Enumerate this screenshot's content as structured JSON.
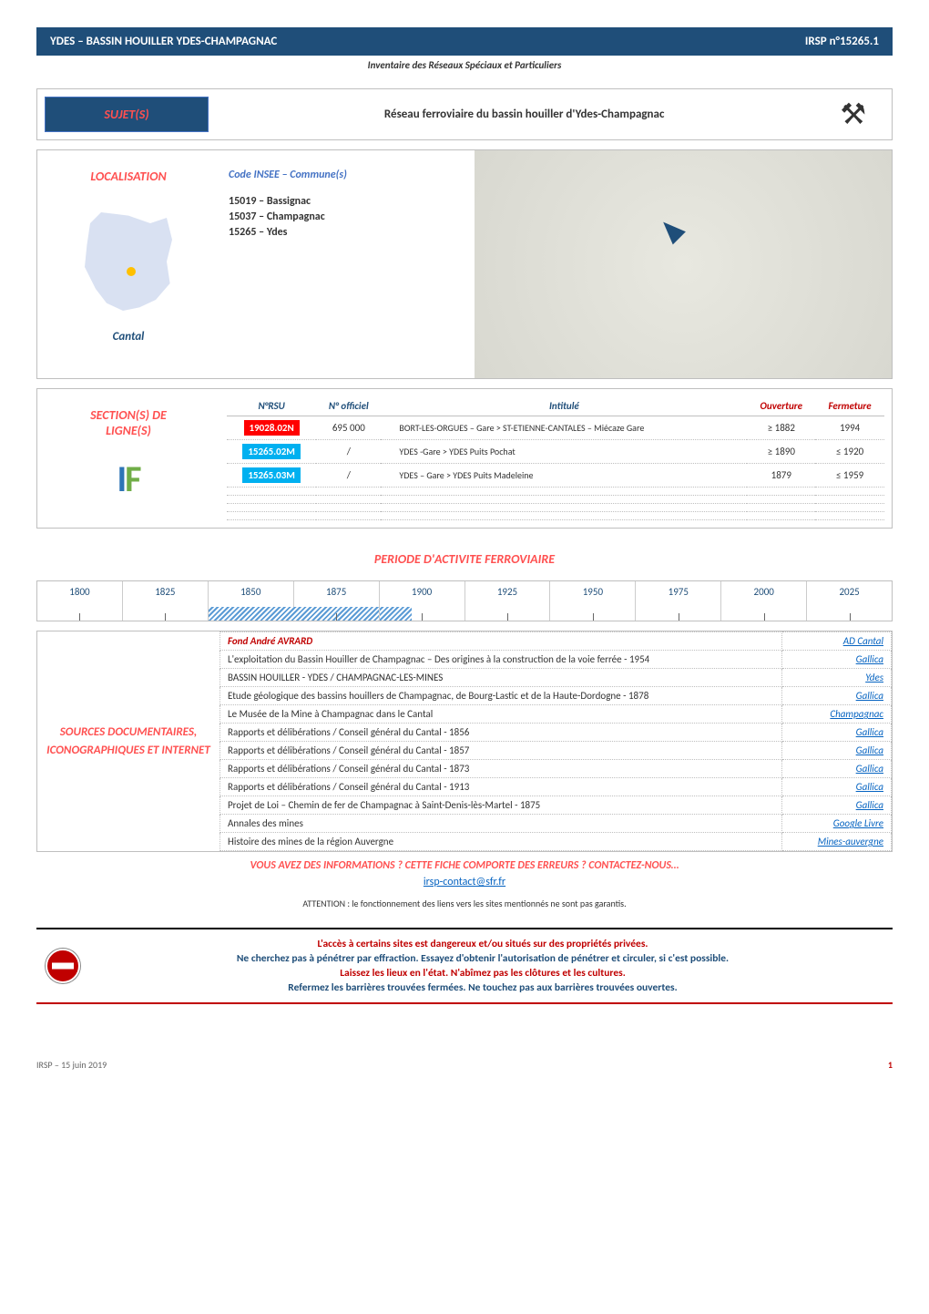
{
  "header": {
    "title_left": "YDES – BASSIN HOUILLER YDES-CHAMPAGNAC",
    "title_right": "IRSP n°15265.1",
    "subtitle": "Inventaire des Réseaux Spéciaux et Particuliers"
  },
  "sujet": {
    "box_label": "SUJET(S)",
    "text": "Réseau ferroviaire du bassin houiller d'Ydes-Champagnac",
    "icon": "⚒"
  },
  "localisation": {
    "box_label": "LOCALISATION",
    "insee_label": "Code INSEE – Commune(s)",
    "communes": [
      "15019 – Bassignac",
      "15037 – Champagnac",
      "15265 – Ydes"
    ],
    "region_label": "Cantal"
  },
  "sections": {
    "box_label": "SECTION(S) DE LIGNE(S)",
    "columns": {
      "rsu": "N°RSU",
      "officiel": "N° officiel",
      "intitule": "Intitulé",
      "ouverture": "Ouverture",
      "fermeture": "Fermeture"
    },
    "rows": [
      {
        "rsu": "19028.02N",
        "rsu_color": "#ff0000",
        "officiel": "695 000",
        "intitule": "BORT-LES-ORGUES – Gare > ST-ETIENNE-CANTALES – Miécaze Gare",
        "ouverture": "≥ 1882",
        "fermeture": "1994"
      },
      {
        "rsu": "15265.02M",
        "rsu_color": "#00b0f0",
        "officiel": "/",
        "intitule": "YDES -Gare > YDES Puits Pochat",
        "ouverture": "≥ 1890",
        "fermeture": "≤ 1920"
      },
      {
        "rsu": "15265.03M",
        "rsu_color": "#00b0f0",
        "officiel": "/",
        "intitule": "YDES – Gare > YDES Puits Madeleine",
        "ouverture": "1879",
        "fermeture": "≤ 1959"
      }
    ]
  },
  "periode": {
    "title": "PERIODE D'ACTIVITE FERROVIAIRE",
    "years": [
      "1800",
      "1825",
      "1850",
      "1875",
      "1900",
      "1925",
      "1950",
      "1975",
      "2000",
      "2025"
    ],
    "active_start_pct": 20,
    "active_width_pct": 24
  },
  "sources": {
    "box_label": "SOURCES DOCUMENTAIRES, ICONOGRAPHIQUES ET INTERNET",
    "fond_label": "Fond André AVRARD",
    "fond_link": "AD Cantal",
    "rows": [
      {
        "text": "L'exploitation du Bassin Houiller de Champagnac – Des origines à la construction de la voie ferrée - 1954",
        "link": "Gallica"
      },
      {
        "text": "BASSIN HOUILLER - YDES / CHAMPAGNAC-LES-MINES",
        "link": "Ydes"
      },
      {
        "text": "Etude géologique des bassins houillers de Champagnac, de Bourg-Lastic et de la Haute-Dordogne - 1878",
        "link": "Gallica"
      },
      {
        "text": "Le Musée de la Mine à Champagnac dans le Cantal",
        "link": "Champagnac"
      },
      {
        "text": "Rapports et délibérations / Conseil général du Cantal - 1856",
        "link": "Gallica"
      },
      {
        "text": "Rapports et délibérations / Conseil général du Cantal - 1857",
        "link": "Gallica"
      },
      {
        "text": "Rapports et délibérations / Conseil général du Cantal - 1873",
        "link": "Gallica"
      },
      {
        "text": "Rapports et délibérations / Conseil général du Cantal - 1913",
        "link": "Gallica"
      },
      {
        "text": "Projet de Loi – Chemin de fer de Champagnac à Saint-Denis-lès-Martel - 1875",
        "link": "Gallica"
      },
      {
        "text": "Annales des mines",
        "link": "Google Livre"
      },
      {
        "text": "Histoire des mines de la région Auvergne",
        "link": "Mines-auvergne"
      }
    ]
  },
  "contact": {
    "title": "VOUS AVEZ DES INFORMATIONS ? CETTE FICHE COMPORTE DES ERREURS ? CONTACTEZ-NOUS…",
    "email": "irsp-contact@sfr.fr"
  },
  "attention": "ATTENTION : le fonctionnement des liens vers les sites mentionnés ne sont pas garantis.",
  "warning": {
    "line1": "L'accès à certains sites est dangereux et/ou situés sur des propriétés privées.",
    "line2": "Ne cherchez pas à pénétrer par effraction. Essayez d'obtenir l'autorisation de pénétrer et circuler, si c'est possible.",
    "line3": "Laissez les lieux en l'état. N'abîmez pas les clôtures et les cultures.",
    "line4": "Refermez les barrières trouvées fermées. Ne touchez pas aux barrières trouvées ouvertes."
  },
  "footer": {
    "left": "IRSP – 15 juin 2019",
    "page": "1"
  }
}
